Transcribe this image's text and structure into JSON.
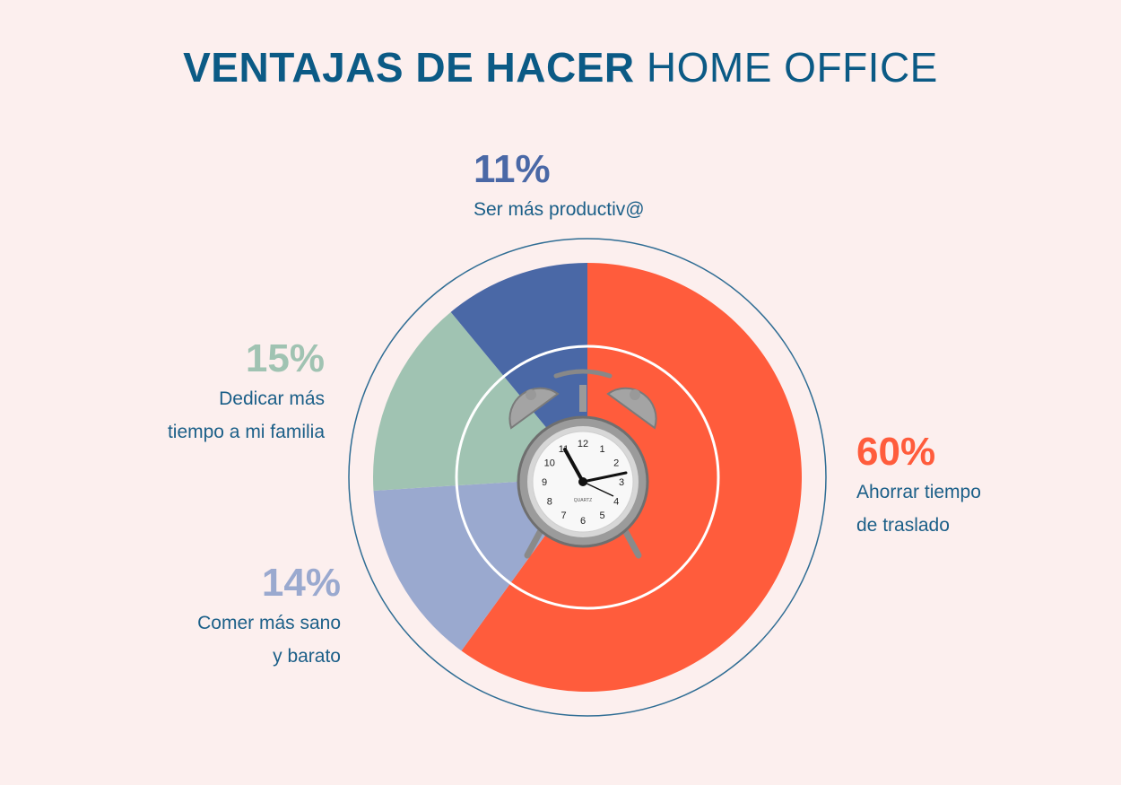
{
  "title": {
    "bold": "VENTAJAS DE HACER",
    "light": "HOME OFFICE"
  },
  "colors": {
    "background": "#fcefee",
    "title": "#0b5a85",
    "text": "#1b5f88",
    "outer_ring": "#2f6d94"
  },
  "chart_data": {
    "type": "pie",
    "title": "VENTAJAS DE HACER HOME OFFICE",
    "unit": "%",
    "slices": [
      {
        "label": "Ahorrar tiempo de traslado",
        "value": 60,
        "value_label": "60%",
        "color": "#ff5c3c"
      },
      {
        "label": "Comer más sano y barato",
        "value": 14,
        "value_label": "14%",
        "color": "#9aa9cf"
      },
      {
        "label": "Dedicar más tiempo a mi familia",
        "value": 15,
        "value_label": "15%",
        "color": "#a0c3b2"
      },
      {
        "label": "Ser más productiv@",
        "value": 11,
        "value_label": "11%",
        "color": "#4a68a6"
      }
    ]
  },
  "labels": {
    "productive": {
      "pct": "11%",
      "lines": [
        "Ser más productiv@"
      ]
    },
    "family": {
      "pct": "15%",
      "lines": [
        "Dedicar más",
        "tiempo a mi familia"
      ]
    },
    "food": {
      "pct": "14%",
      "lines": [
        "Comer más sano",
        "y barato"
      ]
    },
    "commute": {
      "pct": "60%",
      "lines": [
        "Ahorrar tiempo",
        "de traslado"
      ]
    }
  },
  "clock": {
    "icon": "alarm-clock-icon",
    "numbers": [
      "12",
      "1",
      "2",
      "3",
      "4",
      "5",
      "6",
      "7",
      "8",
      "9",
      "10",
      "11"
    ],
    "brand": "QUARTZ"
  }
}
